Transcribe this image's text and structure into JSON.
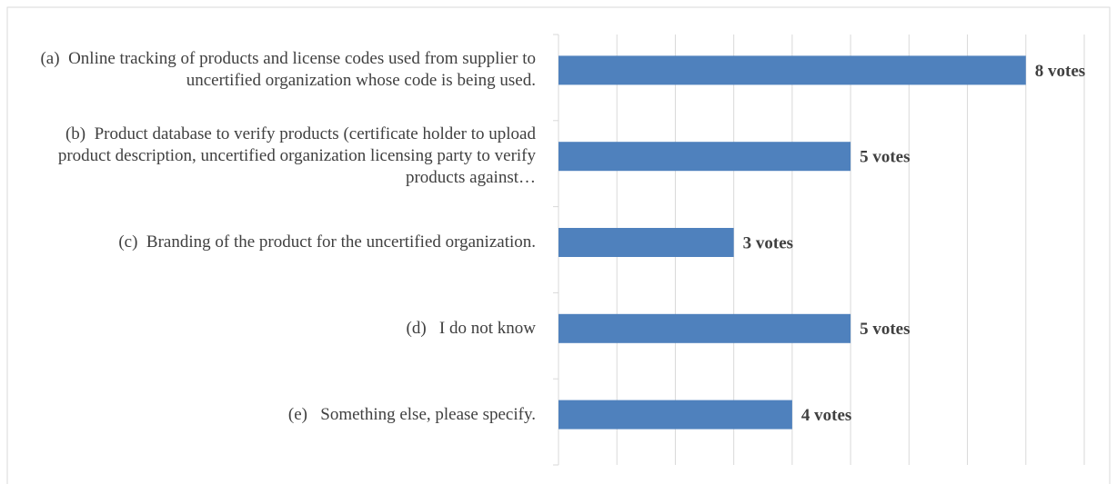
{
  "chart_data": {
    "type": "barh",
    "categories": [
      "(a)  Online tracking of products and license codes used from supplier to uncertified organization whose code is being used.",
      "(b)  Product database to verify products (certificate holder to upload product description, uncertified organization licensing party to verify products against…",
      "(c)  Branding of the product for the uncertified organization.",
      "(d)   I do not know",
      "(e)   Something else, please specify."
    ],
    "values": [
      8,
      5,
      3,
      5,
      4
    ],
    "value_labels": [
      "8 votes",
      "5 votes",
      "3 votes",
      "5 votes",
      "4 votes"
    ],
    "color": "#4f81bd",
    "xlim": [
      0,
      9
    ],
    "xticks": [
      0,
      1,
      2,
      3,
      4,
      5,
      6,
      7,
      8,
      9
    ],
    "grid": true
  }
}
